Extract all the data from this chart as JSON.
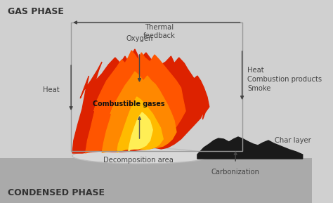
{
  "bg_color": "#d0d0d0",
  "inner_bg_color": "#e2e2e2",
  "title_gas": "GAS PHASE",
  "title_condensed": "CONDENSED PHASE",
  "label_thermal": "Thermal\nfeedback",
  "label_oxygen": "Oxygen",
  "label_heat_left": "Heat",
  "label_heat_right": "Heat",
  "label_combustion_products": "Combustion products",
  "label_smoke": "Smoke",
  "label_combustible": "Combustible gases",
  "label_decomposition": "Decomposition area",
  "label_carbonization": "Carbonization",
  "label_char": "Char layer",
  "flame_outer_color": "#dd2200",
  "flame_mid_color": "#ff5500",
  "flame_inner_color": "#ff8800",
  "flame_core_color": "#ffbb00",
  "flame_yellow_color": "#ffee55",
  "char_color": "#1a1a1a",
  "decomp_color": "#c8c8c8",
  "arrow_color": "#444444",
  "text_color": "#444444",
  "box_color": "#999999",
  "ground_color": "#aaaaaa"
}
